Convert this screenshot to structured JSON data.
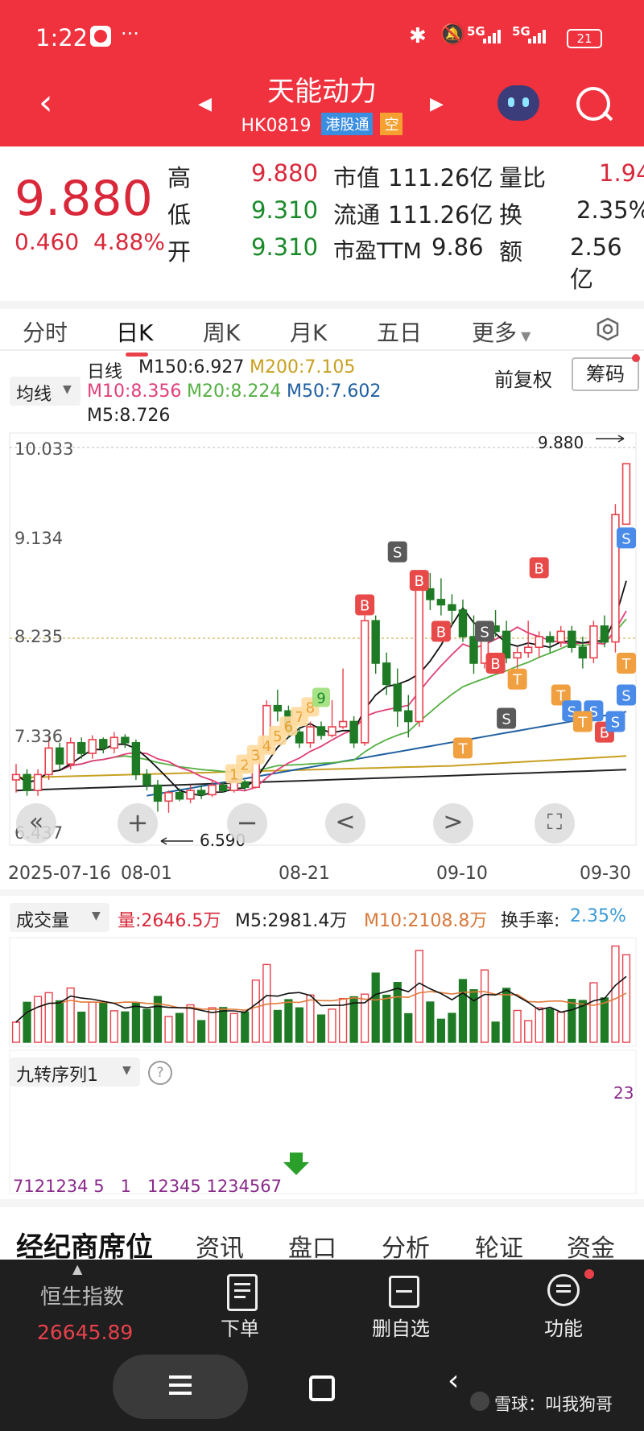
{
  "status_bar": {
    "time": "1:22",
    "dots": "···",
    "battery": "21",
    "net1": "5G",
    "net2": "5G"
  },
  "header": {
    "title": "天能动力",
    "code": "HK0819",
    "tag_connect": "港股通",
    "tag_short": "空"
  },
  "quote": {
    "price": "9.880",
    "change": "0.460",
    "change_pct": "4.88%",
    "high_label": "高",
    "high": "9.880",
    "low_label": "低",
    "low": "9.310",
    "open_label": "开",
    "open": "9.310",
    "mcap_label": "市值",
    "mcap": "111.26亿",
    "float_label": "流通",
    "float": "111.26亿",
    "pe_label": "市盈TTM",
    "pe": "9.86",
    "vr_label": "量比",
    "vr": "1.94",
    "turn_label": "换",
    "turn": "2.35%",
    "amt_label": "额",
    "amt": "2.56亿"
  },
  "tabs": [
    "分时",
    "日K",
    "周K",
    "月K",
    "五日",
    "更多"
  ],
  "active_tab": "日K",
  "ma_legend": {
    "select": "均线",
    "line_label": "日线",
    "m150": "M150:6.927",
    "m200": "M200:7.105",
    "m10": "M10:8.356",
    "m20": "M20:8.224",
    "m50": "M50:7.602",
    "m5": "M5:8.726",
    "adjust": "前复权",
    "chips": "筹码"
  },
  "chart_data": {
    "type": "candlestick",
    "y_ticks": [
      "10.033",
      "9.134",
      "8.235",
      "7.336",
      "6.437"
    ],
    "x_ticks": [
      "2025-07-16",
      "08-01",
      "08-21",
      "09-10",
      "09-30"
    ],
    "high_annotation": "9.880",
    "low_annotation": "6.590",
    "colors": {
      "up": "#e8414c",
      "down": "#1f7a25",
      "m5": "#111111",
      "m10": "#e0407a",
      "m20": "#55b043",
      "m50": "#1f5fa0",
      "m150": "#222222",
      "m200": "#c8a020"
    },
    "candles": [
      {
        "o": 6.9,
        "h": 7.05,
        "l": 6.78,
        "c": 6.95
      },
      {
        "o": 6.95,
        "h": 7.0,
        "l": 6.75,
        "c": 6.8
      },
      {
        "o": 6.8,
        "h": 7.0,
        "l": 6.75,
        "c": 6.95
      },
      {
        "o": 6.95,
        "h": 7.3,
        "l": 6.9,
        "c": 7.2
      },
      {
        "o": 7.2,
        "h": 7.25,
        "l": 7.0,
        "c": 7.05
      },
      {
        "o": 7.05,
        "h": 7.3,
        "l": 7.0,
        "c": 7.25
      },
      {
        "o": 7.25,
        "h": 7.3,
        "l": 7.1,
        "c": 7.15
      },
      {
        "o": 7.15,
        "h": 7.32,
        "l": 7.1,
        "c": 7.28
      },
      {
        "o": 7.28,
        "h": 7.3,
        "l": 7.15,
        "c": 7.2
      },
      {
        "o": 7.2,
        "h": 7.35,
        "l": 7.15,
        "c": 7.3
      },
      {
        "o": 7.3,
        "h": 7.33,
        "l": 7.2,
        "c": 7.25
      },
      {
        "o": 7.25,
        "h": 7.28,
        "l": 6.9,
        "c": 6.95
      },
      {
        "o": 6.95,
        "h": 7.0,
        "l": 6.8,
        "c": 6.85
      },
      {
        "o": 6.85,
        "h": 6.9,
        "l": 6.6,
        "c": 6.7
      },
      {
        "o": 6.7,
        "h": 6.8,
        "l": 6.59,
        "c": 6.78
      },
      {
        "o": 6.78,
        "h": 6.82,
        "l": 6.7,
        "c": 6.72
      },
      {
        "o": 6.72,
        "h": 6.85,
        "l": 6.68,
        "c": 6.8
      },
      {
        "o": 6.8,
        "h": 6.85,
        "l": 6.72,
        "c": 6.76
      },
      {
        "o": 6.76,
        "h": 6.9,
        "l": 6.74,
        "c": 6.85
      },
      {
        "o": 6.85,
        "h": 6.88,
        "l": 6.78,
        "c": 6.8
      },
      {
        "o": 6.8,
        "h": 6.92,
        "l": 6.78,
        "c": 6.88
      },
      {
        "o": 6.88,
        "h": 6.9,
        "l": 6.8,
        "c": 6.83
      },
      {
        "o": 6.83,
        "h": 7.2,
        "l": 6.82,
        "c": 7.18
      },
      {
        "o": 7.18,
        "h": 7.65,
        "l": 7.15,
        "c": 7.6
      },
      {
        "o": 7.6,
        "h": 7.75,
        "l": 7.45,
        "c": 7.55
      },
      {
        "o": 7.55,
        "h": 7.6,
        "l": 7.3,
        "c": 7.35
      },
      {
        "o": 7.35,
        "h": 7.4,
        "l": 7.2,
        "c": 7.25
      },
      {
        "o": 7.25,
        "h": 7.45,
        "l": 7.2,
        "c": 7.4
      },
      {
        "o": 7.4,
        "h": 7.45,
        "l": 7.28,
        "c": 7.32
      },
      {
        "o": 7.32,
        "h": 7.65,
        "l": 7.3,
        "c": 7.4
      },
      {
        "o": 7.4,
        "h": 7.95,
        "l": 7.38,
        "c": 7.45
      },
      {
        "o": 7.45,
        "h": 7.5,
        "l": 7.2,
        "c": 7.25
      },
      {
        "o": 7.25,
        "h": 8.45,
        "l": 7.22,
        "c": 8.4
      },
      {
        "o": 8.4,
        "h": 8.45,
        "l": 7.9,
        "c": 8.0
      },
      {
        "o": 8.0,
        "h": 8.1,
        "l": 7.7,
        "c": 7.8
      },
      {
        "o": 7.8,
        "h": 7.95,
        "l": 7.4,
        "c": 7.55
      },
      {
        "o": 7.55,
        "h": 7.7,
        "l": 7.3,
        "c": 7.45
      },
      {
        "o": 7.45,
        "h": 8.8,
        "l": 7.4,
        "c": 8.7
      },
      {
        "o": 8.7,
        "h": 8.85,
        "l": 8.5,
        "c": 8.6
      },
      {
        "o": 8.6,
        "h": 8.8,
        "l": 8.45,
        "c": 8.55
      },
      {
        "o": 8.55,
        "h": 8.65,
        "l": 8.35,
        "c": 8.5
      },
      {
        "o": 8.5,
        "h": 8.6,
        "l": 8.2,
        "c": 8.25
      },
      {
        "o": 8.25,
        "h": 8.45,
        "l": 7.9,
        "c": 8.0
      },
      {
        "o": 8.0,
        "h": 8.4,
        "l": 7.95,
        "c": 8.35
      },
      {
        "o": 8.35,
        "h": 8.5,
        "l": 8.25,
        "c": 8.3
      },
      {
        "o": 8.3,
        "h": 8.4,
        "l": 8.0,
        "c": 8.05
      },
      {
        "o": 8.05,
        "h": 8.15,
        "l": 7.95,
        "c": 8.1
      },
      {
        "o": 8.1,
        "h": 8.4,
        "l": 8.05,
        "c": 8.15
      },
      {
        "o": 8.15,
        "h": 8.3,
        "l": 8.05,
        "c": 8.25
      },
      {
        "o": 8.25,
        "h": 8.3,
        "l": 8.1,
        "c": 8.2
      },
      {
        "o": 8.2,
        "h": 8.35,
        "l": 8.15,
        "c": 8.3
      },
      {
        "o": 8.3,
        "h": 8.35,
        "l": 8.1,
        "c": 8.15
      },
      {
        "o": 8.15,
        "h": 8.25,
        "l": 7.95,
        "c": 8.05
      },
      {
        "o": 8.05,
        "h": 8.4,
        "l": 8.0,
        "c": 8.35
      },
      {
        "o": 8.35,
        "h": 8.45,
        "l": 8.15,
        "c": 8.2
      },
      {
        "o": 8.2,
        "h": 9.5,
        "l": 8.1,
        "c": 9.4
      },
      {
        "o": 9.31,
        "h": 9.88,
        "l": 9.31,
        "c": 9.88
      }
    ],
    "markers": [
      {
        "label": "B",
        "color": "#e84a4a"
      },
      {
        "label": "S",
        "color": "#5a5a5a"
      },
      {
        "label": "T",
        "color": "#f0a040"
      },
      {
        "label": "S",
        "color": "#4a8ae8"
      }
    ],
    "nine_seq_labels": [
      "1",
      "2",
      "3",
      "4",
      "5",
      "6",
      "7",
      "8",
      "9"
    ]
  },
  "nav_buttons": {
    "left": "«",
    "zoom_in": "+",
    "zoom_out": "−",
    "prev": "<",
    "next": ">",
    "fullscreen": "⛶"
  },
  "volume": {
    "select": "成交量",
    "vol": "量:2646.5万",
    "m5": "M5:2981.4万",
    "m10": "M10:2108.8万",
    "turnover_label": "换手率:",
    "turnover": "2.35%"
  },
  "nine": {
    "select": "九转序列1",
    "help": "?",
    "seq_text": "7121234 5   1   12345 1234567",
    "top_right": "23"
  },
  "bottom_tabs": [
    "经纪商席位",
    "资讯",
    "盘口",
    "分析",
    "轮证",
    "资金"
  ],
  "bottom_nav": {
    "index_name": "恒生指数",
    "index_value": "26645.89",
    "order": "下单",
    "remove": "删自选",
    "func": "功能"
  },
  "watermark": "雪球：叫我狗哥"
}
